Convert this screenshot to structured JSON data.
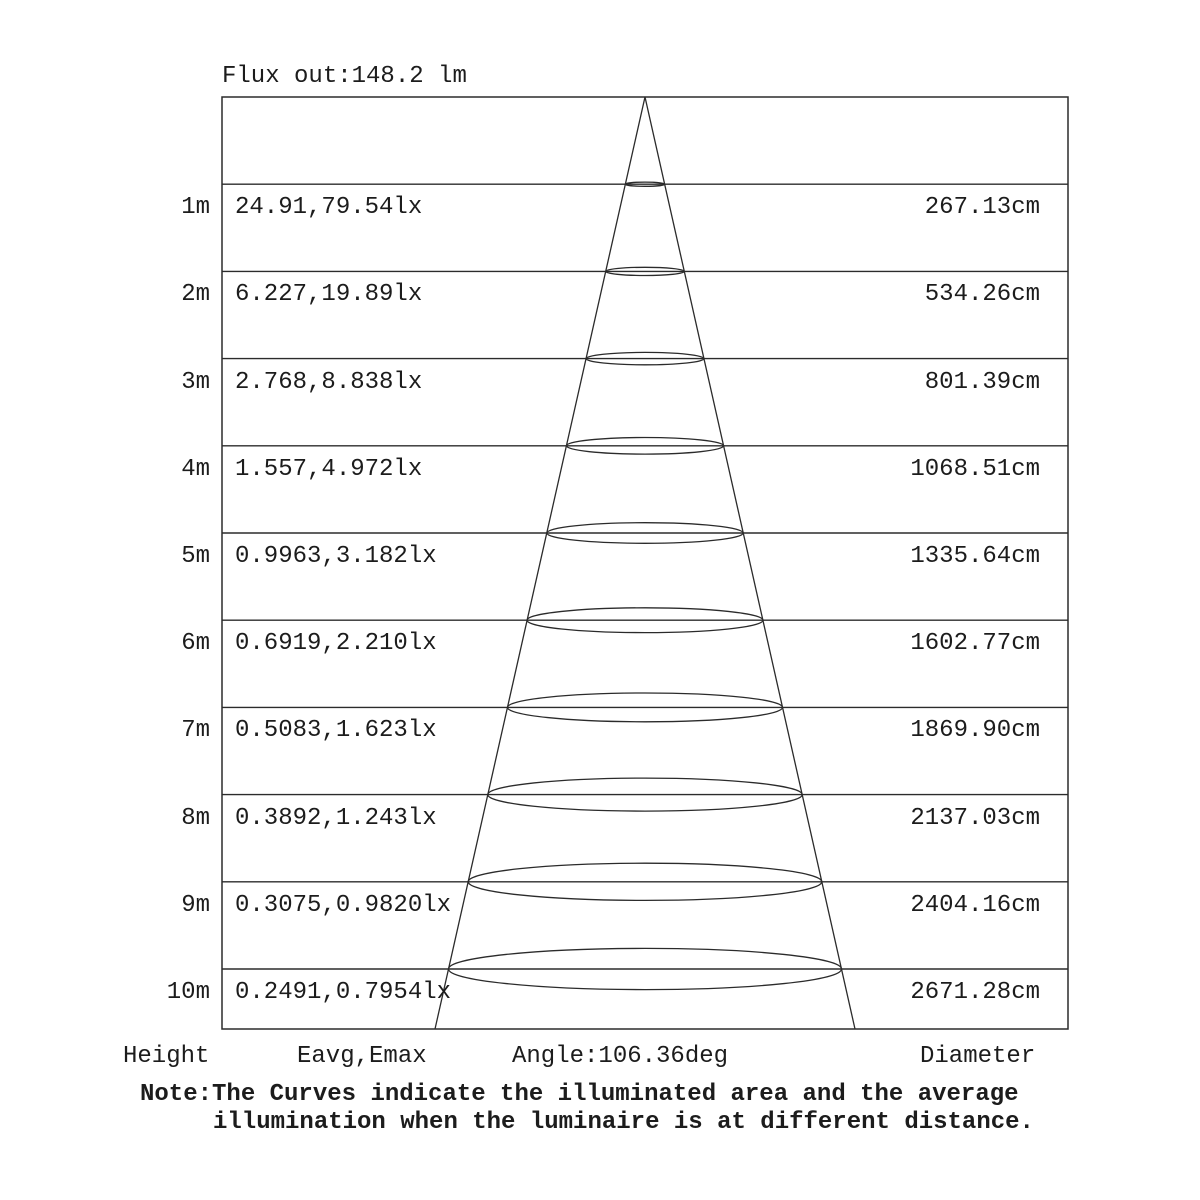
{
  "title": "Flux out:148.2 lm",
  "footer": {
    "height_label": "Height",
    "eavg_emax_label": "Eavg,Emax",
    "angle_label": "Angle:106.36deg",
    "diameter_label": "Diameter"
  },
  "note": {
    "line1": "Note:The Curves indicate the illuminated area and the average",
    "line2": "illumination when the luminaire is at different distance."
  },
  "colors": {
    "line": "#2b2b2b",
    "text": "#1c1c1c",
    "background": "#ffffff"
  },
  "chart_data": {
    "type": "table",
    "title": "Flux out:148.2 lm",
    "flux_out_lm": 148.2,
    "beam_angle_deg": 106.36,
    "columns": [
      "Height",
      "Eavg,Emax",
      "Diameter"
    ],
    "rows": [
      {
        "height": "1m",
        "eavg_emax": "24.91,79.54lx",
        "diameter": "267.13cm"
      },
      {
        "height": "2m",
        "eavg_emax": "6.227,19.89lx",
        "diameter": "534.26cm"
      },
      {
        "height": "3m",
        "eavg_emax": "2.768,8.838lx",
        "diameter": "801.39cm"
      },
      {
        "height": "4m",
        "eavg_emax": "1.557,4.972lx",
        "diameter": "1068.51cm"
      },
      {
        "height": "5m",
        "eavg_emax": "0.9963,3.182lx",
        "diameter": "1335.64cm"
      },
      {
        "height": "6m",
        "eavg_emax": "0.6919,2.210lx",
        "diameter": "1602.77cm"
      },
      {
        "height": "7m",
        "eavg_emax": "0.5083,1.623lx",
        "diameter": "1869.90cm"
      },
      {
        "height": "8m",
        "eavg_emax": "0.3892,1.243lx",
        "diameter": "2137.03cm"
      },
      {
        "height": "9m",
        "eavg_emax": "0.3075,0.9820lx",
        "diameter": "2404.16cm"
      },
      {
        "height": "10m",
        "eavg_emax": "0.2491,0.7954lx",
        "diameter": "2671.28cm"
      }
    ]
  }
}
